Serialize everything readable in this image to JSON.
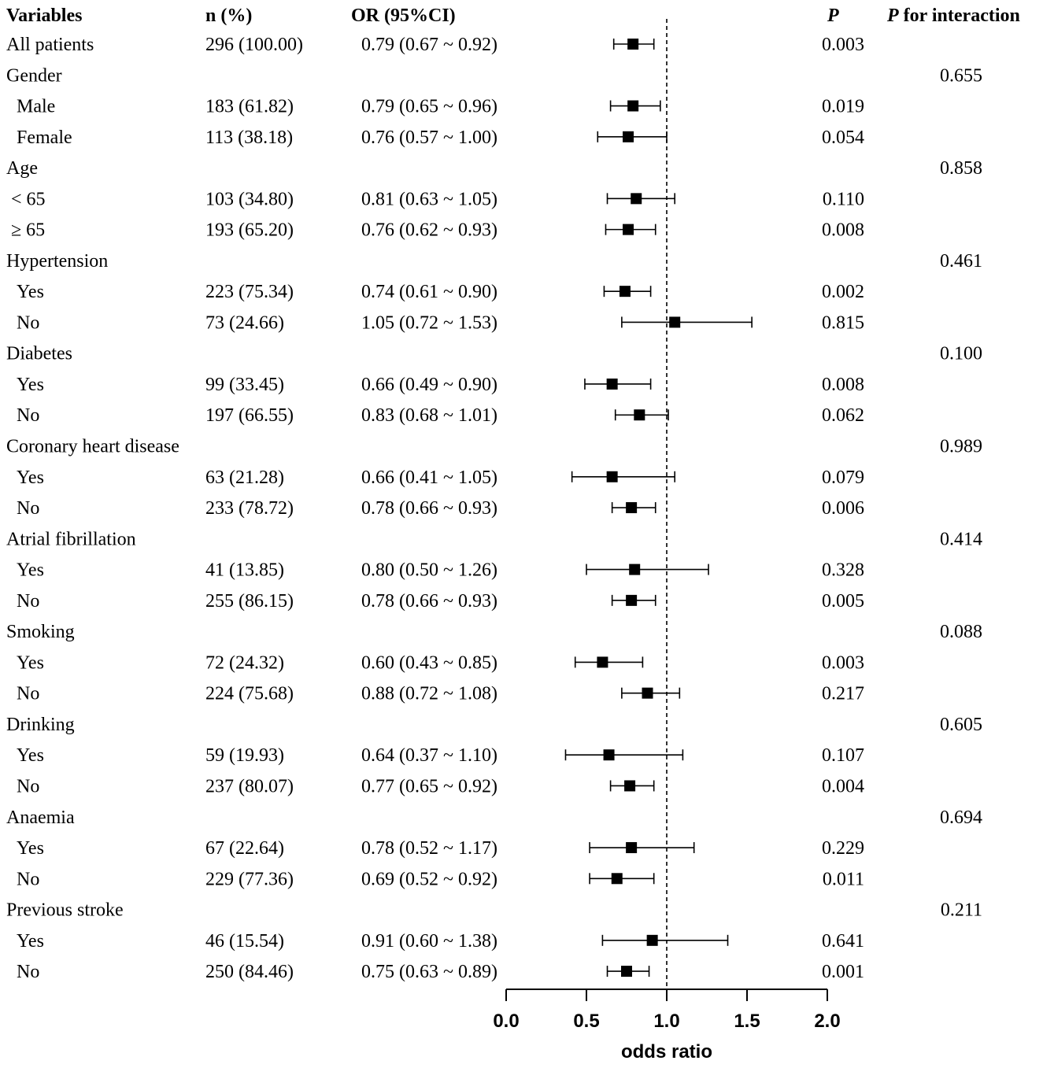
{
  "chart_data": {
    "type": "forest",
    "headers": {
      "variables": "Variables",
      "n": "n (%)",
      "or": "OR (95%CI)",
      "p": "P",
      "p_interaction_italic": "P",
      "p_interaction_rest": " for interaction"
    },
    "xlim": [
      0.0,
      2.0
    ],
    "reference_line": 1.0,
    "xticks": [
      0.0,
      0.5,
      1.0,
      1.5,
      2.0
    ],
    "xtick_labels": [
      "0.0",
      "0.5",
      "1.0",
      "1.5",
      "2.0"
    ],
    "xlabel": "odds ratio",
    "rows": [
      {
        "label": "All patients",
        "level": 0,
        "n": "296 (100.00)",
        "or_text": "0.79 (0.67 ~ 0.92)",
        "or": 0.79,
        "lo": 0.67,
        "hi": 0.92,
        "p": "0.003",
        "p_int": ""
      },
      {
        "label": "Gender",
        "level": 0,
        "n": "",
        "or_text": "",
        "or": null,
        "lo": null,
        "hi": null,
        "p": "",
        "p_int": "0.655"
      },
      {
        "label": "Male",
        "level": 1,
        "n": "183 (61.82)",
        "or_text": "0.79 (0.65 ~ 0.96)",
        "or": 0.79,
        "lo": 0.65,
        "hi": 0.96,
        "p": "0.019",
        "p_int": ""
      },
      {
        "label": "Female",
        "level": 1,
        "n": "113 (38.18)",
        "or_text": "0.76 (0.57 ~ 1.00)",
        "or": 0.76,
        "lo": 0.57,
        "hi": 1.0,
        "p": "0.054",
        "p_int": ""
      },
      {
        "label": "Age",
        "level": 0,
        "n": "",
        "or_text": "",
        "or": null,
        "lo": null,
        "hi": null,
        "p": "",
        "p_int": "0.858"
      },
      {
        "label": "< 65",
        "level": 2,
        "n": "103 (34.80)",
        "or_text": "0.81 (0.63 ~ 1.05)",
        "or": 0.81,
        "lo": 0.63,
        "hi": 1.05,
        "p": "0.110",
        "p_int": ""
      },
      {
        "label": "≥ 65",
        "level": 2,
        "n": "193 (65.20)",
        "or_text": "0.76 (0.62 ~ 0.93)",
        "or": 0.76,
        "lo": 0.62,
        "hi": 0.93,
        "p": "0.008",
        "p_int": ""
      },
      {
        "label": "Hypertension",
        "level": 0,
        "n": "",
        "or_text": "",
        "or": null,
        "lo": null,
        "hi": null,
        "p": "",
        "p_int": "0.461"
      },
      {
        "label": "Yes",
        "level": 1,
        "n": "223 (75.34)",
        "or_text": "0.74 (0.61 ~ 0.90)",
        "or": 0.74,
        "lo": 0.61,
        "hi": 0.9,
        "p": "0.002",
        "p_int": ""
      },
      {
        "label": "No",
        "level": 1,
        "n": "73 (24.66)",
        "or_text": "1.05 (0.72 ~ 1.53)",
        "or": 1.05,
        "lo": 0.72,
        "hi": 1.53,
        "p": "0.815",
        "p_int": ""
      },
      {
        "label": "Diabetes",
        "level": 0,
        "n": "",
        "or_text": "",
        "or": null,
        "lo": null,
        "hi": null,
        "p": "",
        "p_int": "0.100"
      },
      {
        "label": "Yes",
        "level": 1,
        "n": "99 (33.45)",
        "or_text": "0.66 (0.49 ~ 0.90)",
        "or": 0.66,
        "lo": 0.49,
        "hi": 0.9,
        "p": "0.008",
        "p_int": ""
      },
      {
        "label": "No",
        "level": 1,
        "n": "197 (66.55)",
        "or_text": "0.83 (0.68 ~ 1.01)",
        "or": 0.83,
        "lo": 0.68,
        "hi": 1.01,
        "p": "0.062",
        "p_int": ""
      },
      {
        "label": "Coronary heart disease",
        "level": 0,
        "n": "",
        "or_text": "",
        "or": null,
        "lo": null,
        "hi": null,
        "p": "",
        "p_int": "0.989"
      },
      {
        "label": "Yes",
        "level": 1,
        "n": "63 (21.28)",
        "or_text": "0.66 (0.41 ~ 1.05)",
        "or": 0.66,
        "lo": 0.41,
        "hi": 1.05,
        "p": "0.079",
        "p_int": ""
      },
      {
        "label": "No",
        "level": 1,
        "n": "233 (78.72)",
        "or_text": "0.78 (0.66 ~ 0.93)",
        "or": 0.78,
        "lo": 0.66,
        "hi": 0.93,
        "p": "0.006",
        "p_int": ""
      },
      {
        "label": "Atrial fibrillation",
        "level": 0,
        "n": "",
        "or_text": "",
        "or": null,
        "lo": null,
        "hi": null,
        "p": "",
        "p_int": "0.414"
      },
      {
        "label": "Yes",
        "level": 1,
        "n": "41 (13.85)",
        "or_text": "0.80 (0.50 ~ 1.26)",
        "or": 0.8,
        "lo": 0.5,
        "hi": 1.26,
        "p": "0.328",
        "p_int": ""
      },
      {
        "label": "No",
        "level": 1,
        "n": "255 (86.15)",
        "or_text": "0.78 (0.66 ~ 0.93)",
        "or": 0.78,
        "lo": 0.66,
        "hi": 0.93,
        "p": "0.005",
        "p_int": ""
      },
      {
        "label": "Smoking",
        "level": 0,
        "n": "",
        "or_text": "",
        "or": null,
        "lo": null,
        "hi": null,
        "p": "",
        "p_int": "0.088"
      },
      {
        "label": "Yes",
        "level": 1,
        "n": "72 (24.32)",
        "or_text": "0.60 (0.43 ~ 0.85)",
        "or": 0.6,
        "lo": 0.43,
        "hi": 0.85,
        "p": "0.003",
        "p_int": ""
      },
      {
        "label": "No",
        "level": 1,
        "n": "224 (75.68)",
        "or_text": "0.88 (0.72 ~ 1.08)",
        "or": 0.88,
        "lo": 0.72,
        "hi": 1.08,
        "p": "0.217",
        "p_int": ""
      },
      {
        "label": "Drinking",
        "level": 0,
        "n": "",
        "or_text": "",
        "or": null,
        "lo": null,
        "hi": null,
        "p": "",
        "p_int": "0.605"
      },
      {
        "label": "Yes",
        "level": 1,
        "n": "59 (19.93)",
        "or_text": "0.64 (0.37 ~ 1.10)",
        "or": 0.64,
        "lo": 0.37,
        "hi": 1.1,
        "p": "0.107",
        "p_int": ""
      },
      {
        "label": "No",
        "level": 1,
        "n": "237 (80.07)",
        "or_text": "0.77 (0.65 ~ 0.92)",
        "or": 0.77,
        "lo": 0.65,
        "hi": 0.92,
        "p": "0.004",
        "p_int": ""
      },
      {
        "label": "Anaemia",
        "level": 0,
        "n": "",
        "or_text": "",
        "or": null,
        "lo": null,
        "hi": null,
        "p": "",
        "p_int": "0.694"
      },
      {
        "label": "Yes",
        "level": 1,
        "n": "67 (22.64)",
        "or_text": "0.78 (0.52 ~ 1.17)",
        "or": 0.78,
        "lo": 0.52,
        "hi": 1.17,
        "p": "0.229",
        "p_int": ""
      },
      {
        "label": "No",
        "level": 1,
        "n": "229 (77.36)",
        "or_text": "0.69 (0.52 ~ 0.92)",
        "or": 0.69,
        "lo": 0.52,
        "hi": 0.92,
        "p": "0.011",
        "p_int": ""
      },
      {
        "label": "Previous stroke",
        "level": 0,
        "n": "",
        "or_text": "",
        "or": null,
        "lo": null,
        "hi": null,
        "p": "",
        "p_int": "0.211"
      },
      {
        "label": "Yes",
        "level": 1,
        "n": "46 (15.54)",
        "or_text": "0.91 (0.60 ~ 1.38)",
        "or": 0.91,
        "lo": 0.6,
        "hi": 1.38,
        "p": "0.641",
        "p_int": ""
      },
      {
        "label": "No",
        "level": 1,
        "n": "250 (84.46)",
        "or_text": "0.75 (0.63 ~ 0.89)",
        "or": 0.75,
        "lo": 0.63,
        "hi": 0.89,
        "p": "0.001",
        "p_int": ""
      }
    ]
  }
}
